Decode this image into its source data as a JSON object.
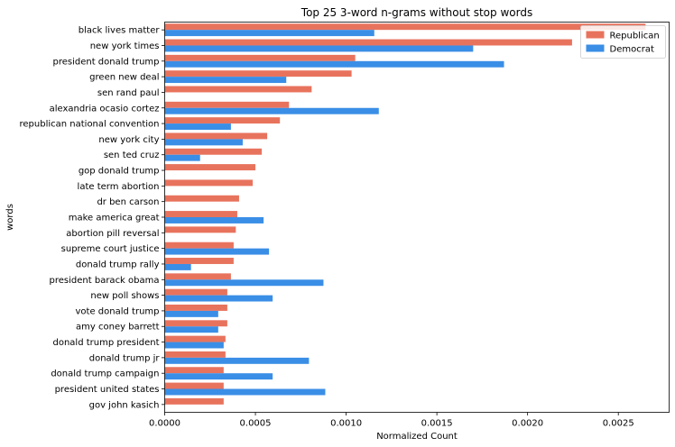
{
  "chart_data": {
    "type": "bar",
    "orientation": "horizontal",
    "title": "Top 25 3-word n-grams without stop words",
    "xlabel": "Normalized Count",
    "ylabel": "words",
    "xlim": [
      0,
      0.00278
    ],
    "xticks": [
      "0.0000",
      "0.0005",
      "0.0010",
      "0.0015",
      "0.0020",
      "0.0025"
    ],
    "xtick_values": [
      0,
      0.0005,
      0.001,
      0.0015,
      0.002,
      0.0025
    ],
    "grid": false,
    "legend_position": "top-right",
    "categories": [
      "black lives matter",
      "new york times",
      "president donald trump",
      "green new deal",
      "sen rand paul",
      "alexandria ocasio cortez",
      "republican national convention",
      "new york city",
      "sen ted cruz",
      "gop donald trump",
      "late term abortion",
      "dr ben carson",
      "make america great",
      "abortion pill reversal",
      "supreme court justice",
      "donald trump rally",
      "president barack obama",
      "new poll shows",
      "vote donald trump",
      "amy coney barrett",
      "donald trump president",
      "donald trump jr",
      "donald trump campaign",
      "president united states",
      "gov john kasich"
    ],
    "series": [
      {
        "name": "Republican",
        "color": "#e8735d",
        "values": [
          0.00265,
          0.002245,
          0.00105,
          0.00103,
          0.00081,
          0.000685,
          0.000635,
          0.000565,
          0.000535,
          0.0005,
          0.000485,
          0.00041,
          0.0004,
          0.000392,
          0.00038,
          0.00038,
          0.000365,
          0.000345,
          0.000345,
          0.000345,
          0.000335,
          0.000335,
          0.000325,
          0.000325,
          0.000325
        ]
      },
      {
        "name": "Democrat",
        "color": "#3a8ee6",
        "values": [
          0.001155,
          0.0017,
          0.00187,
          0.00067,
          0,
          0.00118,
          0.000365,
          0.00043,
          0.000195,
          0,
          0,
          0,
          0.000545,
          0,
          0.000575,
          0.000145,
          0.000875,
          0.000595,
          0.000295,
          0.000295,
          0.000325,
          0.000795,
          0.000595,
          0.000885,
          0
        ]
      }
    ]
  }
}
